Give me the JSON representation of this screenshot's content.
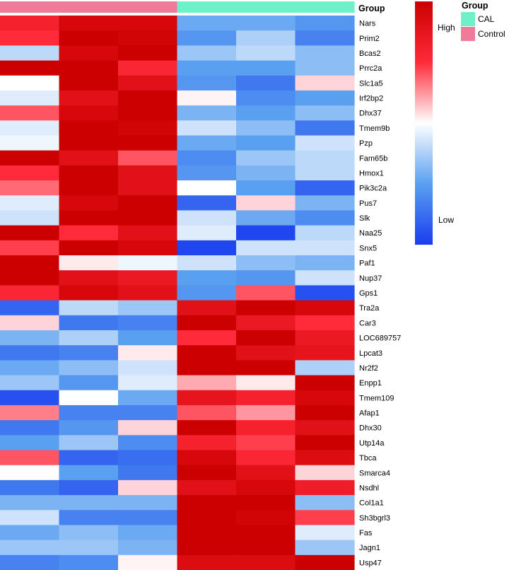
{
  "chart_data": {
    "type": "heatmap",
    "title": "",
    "column_annotation_title": "Group",
    "columns": [
      {
        "group": "Control"
      },
      {
        "group": "Control"
      },
      {
        "group": "Control"
      },
      {
        "group": "CAL"
      },
      {
        "group": "CAL"
      },
      {
        "group": "CAL"
      }
    ],
    "group_legend": {
      "title": "Group",
      "entries": [
        {
          "label": "CAL",
          "color": "#6ef0c8"
        },
        {
          "label": "Control",
          "color": "#f07a9a"
        }
      ]
    },
    "color_legend": {
      "high_label": "High",
      "low_label": "Low",
      "scale": [
        {
          "stop": 0.0,
          "color": "#cc0000"
        },
        {
          "stop": 0.25,
          "color": "#ff2a3a"
        },
        {
          "stop": 0.5,
          "color": "#ffffff"
        },
        {
          "stop": 0.75,
          "color": "#5aa0f0"
        },
        {
          "stop": 1.0,
          "color": "#1a3cf0"
        }
      ],
      "range": [
        -2,
        2
      ]
    },
    "rows": [
      {
        "gene": "Nars",
        "values": [
          1.2,
          1.8,
          1.8,
          -0.9,
          -0.9,
          -1.1
        ]
      },
      {
        "gene": "Prim2",
        "values": [
          1.0,
          2.0,
          1.9,
          -1.1,
          -0.5,
          -1.3
        ]
      },
      {
        "gene": "Bcas2",
        "values": [
          -0.4,
          1.8,
          2.4,
          -0.6,
          -0.4,
          -0.7
        ]
      },
      {
        "gene": "Prrc2a",
        "values": [
          2.0,
          2.0,
          1.1,
          -1.0,
          -1.0,
          -0.7
        ]
      },
      {
        "gene": "Slc1a5",
        "values": [
          0.0,
          2.0,
          1.6,
          -1.1,
          -1.4,
          0.2
        ]
      },
      {
        "gene": "Irf2bp2",
        "values": [
          -0.2,
          1.6,
          2.0,
          0.05,
          -1.2,
          -1.0
        ]
      },
      {
        "gene": "Dhx37",
        "values": [
          0.8,
          1.8,
          2.0,
          -0.8,
          -1.0,
          -0.7
        ]
      },
      {
        "gene": "Tmem9b",
        "values": [
          -0.2,
          2.0,
          1.9,
          -0.3,
          -0.7,
          -1.4
        ]
      },
      {
        "gene": "Pzp",
        "values": [
          -0.1,
          2.0,
          2.0,
          -0.9,
          -1.0,
          -0.3
        ]
      },
      {
        "gene": "Fam65b",
        "values": [
          2.0,
          1.6,
          0.8,
          -1.2,
          -0.6,
          -0.4
        ]
      },
      {
        "gene": "Hmox1",
        "values": [
          1.0,
          2.0,
          1.6,
          -1.1,
          -0.8,
          -0.4
        ]
      },
      {
        "gene": "Pik3c2a",
        "values": [
          0.7,
          2.0,
          1.6,
          0.0,
          -1.0,
          -1.6
        ]
      },
      {
        "gene": "Pus7",
        "values": [
          -0.2,
          1.8,
          2.0,
          -1.6,
          0.2,
          -0.8
        ]
      },
      {
        "gene": "Slk",
        "values": [
          -0.3,
          2.3,
          2.0,
          -0.3,
          -0.9,
          -1.2
        ]
      },
      {
        "gene": "Naa25",
        "values": [
          2.0,
          1.0,
          1.6,
          -0.2,
          -1.9,
          -0.4
        ]
      },
      {
        "gene": "Snx5",
        "values": [
          0.9,
          2.0,
          1.8,
          -1.9,
          -0.3,
          -0.3
        ]
      },
      {
        "gene": "Paf1",
        "values": [
          2.4,
          0.1,
          -0.1,
          -0.3,
          -0.7,
          -0.8
        ]
      },
      {
        "gene": "Nup37",
        "values": [
          2.0,
          1.6,
          1.4,
          -1.0,
          -1.1,
          -0.3
        ]
      },
      {
        "gene": "Gps1",
        "values": [
          1.1,
          1.8,
          1.6,
          -1.1,
          0.8,
          -1.8
        ]
      },
      {
        "gene": "Tra2a",
        "values": [
          -1.6,
          -0.4,
          -0.6,
          1.6,
          2.0,
          1.8
        ]
      },
      {
        "gene": "Car3",
        "values": [
          0.2,
          -1.4,
          -1.3,
          2.0,
          1.4,
          1.0
        ]
      },
      {
        "gene": "LOC689757",
        "values": [
          -0.8,
          -0.5,
          -1.0,
          1.0,
          2.2,
          1.4
        ]
      },
      {
        "gene": "Lpcat3",
        "values": [
          -1.4,
          -1.3,
          0.1,
          2.0,
          1.6,
          1.5
        ]
      },
      {
        "gene": "Nr2f2",
        "values": [
          -0.9,
          -0.7,
          -0.3,
          2.0,
          2.0,
          -0.5
        ]
      },
      {
        "gene": "Enpp1",
        "values": [
          -0.6,
          -1.1,
          -0.2,
          0.4,
          0.1,
          2.4
        ]
      },
      {
        "gene": "Tmem109",
        "values": [
          -1.8,
          0.0,
          -0.9,
          1.5,
          1.2,
          1.8
        ]
      },
      {
        "gene": "Afap1",
        "values": [
          0.6,
          -1.3,
          -1.3,
          0.8,
          0.5,
          2.0
        ]
      },
      {
        "gene": "Dhx30",
        "values": [
          -1.4,
          -1.1,
          0.2,
          2.0,
          1.2,
          1.6
        ]
      },
      {
        "gene": "Utp14a",
        "values": [
          -1.0,
          -0.6,
          -1.2,
          1.2,
          0.9,
          2.4
        ]
      },
      {
        "gene": "Tbca",
        "values": [
          0.8,
          -1.6,
          -1.5,
          1.8,
          1.1,
          1.7
        ]
      },
      {
        "gene": "Smarca4",
        "values": [
          0.0,
          -1.0,
          -1.4,
          2.4,
          1.6,
          0.2
        ]
      },
      {
        "gene": "Nsdhl",
        "values": [
          -1.4,
          -1.6,
          0.2,
          1.6,
          1.8,
          1.3
        ]
      },
      {
        "gene": "Col1a1",
        "values": [
          -0.8,
          -0.8,
          -0.8,
          2.0,
          2.0,
          -0.7
        ]
      },
      {
        "gene": "Sh3bgrl3",
        "values": [
          -0.3,
          -1.3,
          -1.3,
          2.0,
          1.9,
          0.9
        ]
      },
      {
        "gene": "Fas",
        "values": [
          -0.9,
          -0.7,
          -0.9,
          2.0,
          2.0,
          -0.2
        ]
      },
      {
        "gene": "Jagn1",
        "values": [
          -0.6,
          -0.6,
          -0.8,
          2.0,
          2.0,
          -0.6
        ]
      },
      {
        "gene": "Usp47",
        "values": [
          -1.3,
          -1.2,
          0.05,
          1.7,
          1.7,
          2.0
        ]
      }
    ]
  }
}
